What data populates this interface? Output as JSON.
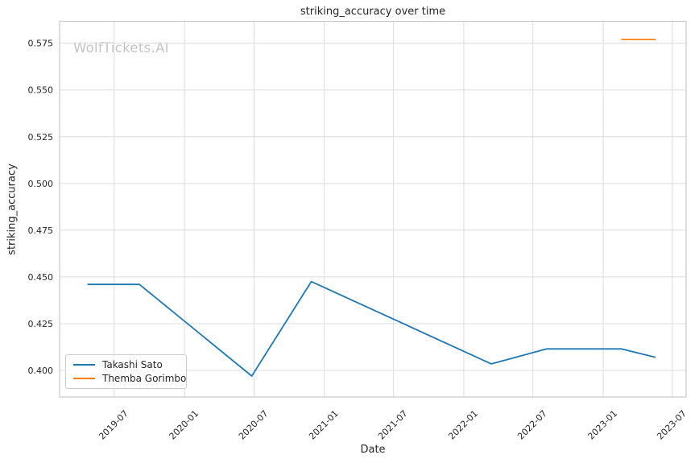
{
  "chart_data": {
    "type": "line",
    "title": "striking_accuracy over time",
    "xlabel": "Date",
    "ylabel": "striking_accuracy",
    "watermark": "WolfTickets.AI",
    "grid": true,
    "legend_position": "lower left",
    "xlim": [
      "2019-02-08",
      "2023-08-06"
    ],
    "ylim": [
      0.3858,
      0.5867
    ],
    "x_tick_labels": [
      "2019-07",
      "2020-01",
      "2020-07",
      "2021-01",
      "2021-07",
      "2022-01",
      "2022-07",
      "2023-01",
      "2023-07"
    ],
    "y_tick_labels": [
      "0.400",
      "0.425",
      "0.450",
      "0.475",
      "0.500",
      "0.525",
      "0.550",
      "0.575"
    ],
    "series": [
      {
        "name": "Takashi Sato",
        "color": "#1f77b4",
        "x": [
          "2019-04-22",
          "2019-09-05",
          "2020-06-25",
          "2020-11-28",
          "2022-03-14",
          "2022-08-06",
          "2023-02-17",
          "2023-05-18"
        ],
        "y": [
          0.446,
          0.446,
          0.397,
          0.4475,
          0.4035,
          0.4115,
          0.4115,
          0.407
        ]
      },
      {
        "name": "Themba Gorimbo",
        "color": "#ff7f0e",
        "x": [
          "2023-02-17",
          "2023-05-18"
        ],
        "y": [
          0.577,
          0.577
        ]
      }
    ],
    "style": {
      "grid_color": "#dcdcdc",
      "spine_color": "#c9c9c9",
      "text_color": "#262626",
      "watermark_color": "#c4c4c4",
      "line_width": 1.8
    }
  }
}
